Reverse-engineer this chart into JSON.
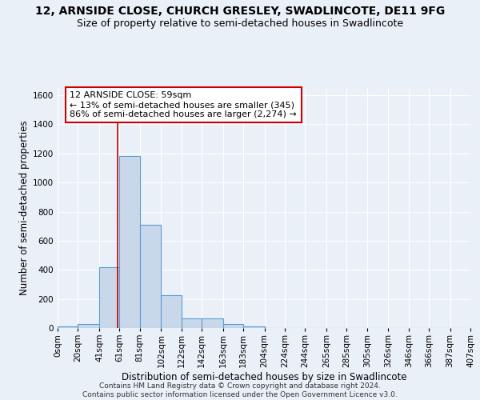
{
  "title_line1": "12, ARNSIDE CLOSE, CHURCH GRESLEY, SWADLINCOTE, DE11 9FG",
  "title_line2": "Size of property relative to semi-detached houses in Swadlincote",
  "xlabel": "Distribution of semi-detached houses by size in Swadlincote",
  "ylabel": "Number of semi-detached properties",
  "footnote": "Contains HM Land Registry data © Crown copyright and database right 2024.\nContains public sector information licensed under the Open Government Licence v3.0.",
  "annotation_title": "12 ARNSIDE CLOSE: 59sqm",
  "annotation_line1": "← 13% of semi-detached houses are smaller (345)",
  "annotation_line2": "86% of semi-detached houses are larger (2,274) →",
  "property_size": 59,
  "bin_edges": [
    0,
    20,
    41,
    61,
    81,
    102,
    122,
    142,
    163,
    183,
    204,
    224,
    244,
    265,
    285,
    305,
    326,
    346,
    366,
    387,
    407
  ],
  "bin_counts": [
    10,
    30,
    420,
    1180,
    710,
    225,
    65,
    65,
    25,
    10,
    0,
    0,
    0,
    0,
    0,
    0,
    0,
    0,
    0,
    0
  ],
  "bar_facecolor": "#c8d8ea",
  "bar_edgecolor": "#5b9bd5",
  "bar_linewidth": 0.8,
  "vline_color": "#cc0000",
  "vline_linewidth": 1.2,
  "annotation_box_edgecolor": "#cc0000",
  "annotation_box_facecolor": "#ffffff",
  "background_color": "#eaf0f8",
  "plot_background": "#eaf0f8",
  "grid_color": "#ffffff",
  "ylim": [
    0,
    1650
  ],
  "yticks": [
    0,
    200,
    400,
    600,
    800,
    1000,
    1200,
    1400,
    1600
  ],
  "tick_labels": [
    "0sqm",
    "20sqm",
    "41sqm",
    "61sqm",
    "81sqm",
    "102sqm",
    "122sqm",
    "142sqm",
    "163sqm",
    "183sqm",
    "204sqm",
    "224sqm",
    "244sqm",
    "265sqm",
    "285sqm",
    "305sqm",
    "326sqm",
    "346sqm",
    "366sqm",
    "387sqm",
    "407sqm"
  ],
  "title_fontsize": 10,
  "subtitle_fontsize": 9,
  "axis_label_fontsize": 8.5,
  "tick_fontsize": 7.5,
  "annotation_fontsize": 8,
  "footnote_fontsize": 6.5
}
